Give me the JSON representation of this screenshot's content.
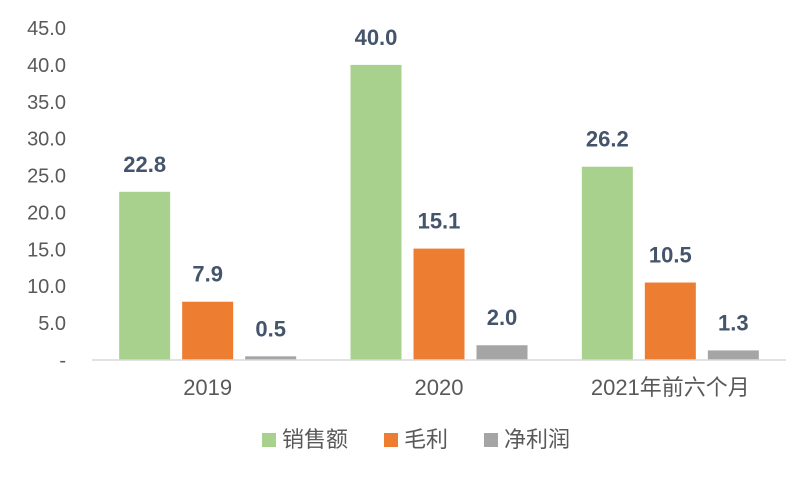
{
  "chart_data": {
    "type": "bar",
    "categories": [
      "2019",
      "2020",
      "2021年前六个月"
    ],
    "series": [
      {
        "name": "销售额",
        "values": [
          22.8,
          40.0,
          26.2
        ],
        "color": "#a9d18e"
      },
      {
        "name": "毛利",
        "values": [
          7.9,
          15.1,
          10.5
        ],
        "color": "#ed7d31"
      },
      {
        "name": "净利润",
        "values": [
          0.5,
          2.0,
          1.3
        ],
        "color": "#a5a5a5"
      }
    ],
    "data_labels": [
      [
        "22.8",
        "40.0",
        "26.2"
      ],
      [
        "7.9",
        "15.1",
        "10.5"
      ],
      [
        "0.5",
        "2.0",
        "1.3"
      ]
    ],
    "yticks": [
      "-",
      "5.0",
      "10.0",
      "15.0",
      "20.0",
      "25.0",
      "30.0",
      "35.0",
      "40.0",
      "45.0"
    ],
    "ylim": [
      0,
      45
    ],
    "grid": false,
    "legend": "bottom",
    "title": "",
    "xlabel": "",
    "ylabel": ""
  }
}
